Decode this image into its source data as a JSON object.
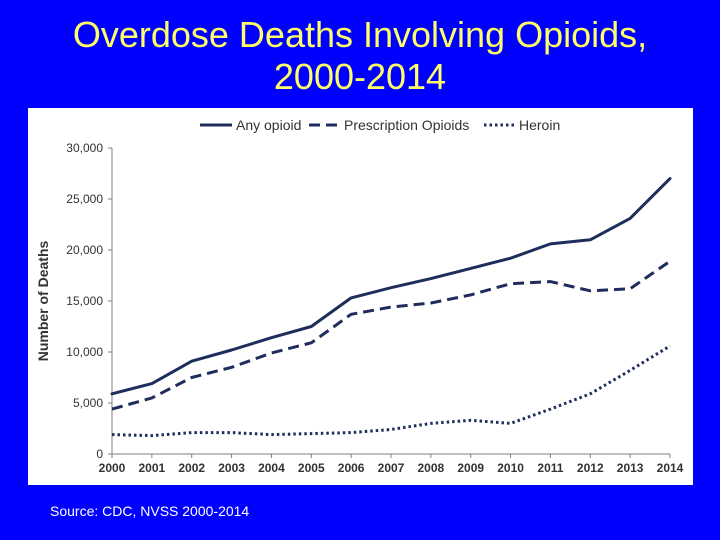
{
  "slide": {
    "title_line1": "Overdose Deaths Involving Opioids,",
    "title_line2": "2000-2014",
    "source": "Source: CDC, NVSS 2000-2014"
  },
  "colors": {
    "background": "#0000ff",
    "title": "#ffff66",
    "series": "#1f2d5c"
  },
  "chart_data": {
    "type": "line",
    "title": "",
    "xlabel": "",
    "ylabel": "Number of Deaths",
    "ylim": [
      0,
      30000
    ],
    "yticks": [
      0,
      5000,
      10000,
      15000,
      20000,
      25000,
      30000
    ],
    "ytick_labels": [
      "0",
      "5,000",
      "10,000",
      "15,000",
      "20,000",
      "25,000",
      "30,000"
    ],
    "categories": [
      "2000",
      "2001",
      "2002",
      "2003",
      "2004",
      "2005",
      "2006",
      "2007",
      "2008",
      "2009",
      "2010",
      "2011",
      "2012",
      "2013",
      "2014"
    ],
    "legend_position": "top",
    "series": [
      {
        "name": "Any opioid",
        "style": "solid",
        "values": [
          5900,
          6900,
          9100,
          10200,
          11400,
          12500,
          15300,
          16300,
          17200,
          18200,
          19200,
          20600,
          21000,
          23100,
          27000
        ]
      },
      {
        "name": "Prescription Opioids",
        "style": "dashed",
        "values": [
          4400,
          5500,
          7500,
          8500,
          9900,
          10900,
          13700,
          14400,
          14800,
          15600,
          16700,
          16900,
          16000,
          16200,
          18900
        ]
      },
      {
        "name": "Heroin",
        "style": "dotted",
        "values": [
          1900,
          1800,
          2100,
          2100,
          1900,
          2000,
          2100,
          2400,
          3000,
          3300,
          3000,
          4400,
          5900,
          8200,
          10600
        ]
      }
    ]
  }
}
